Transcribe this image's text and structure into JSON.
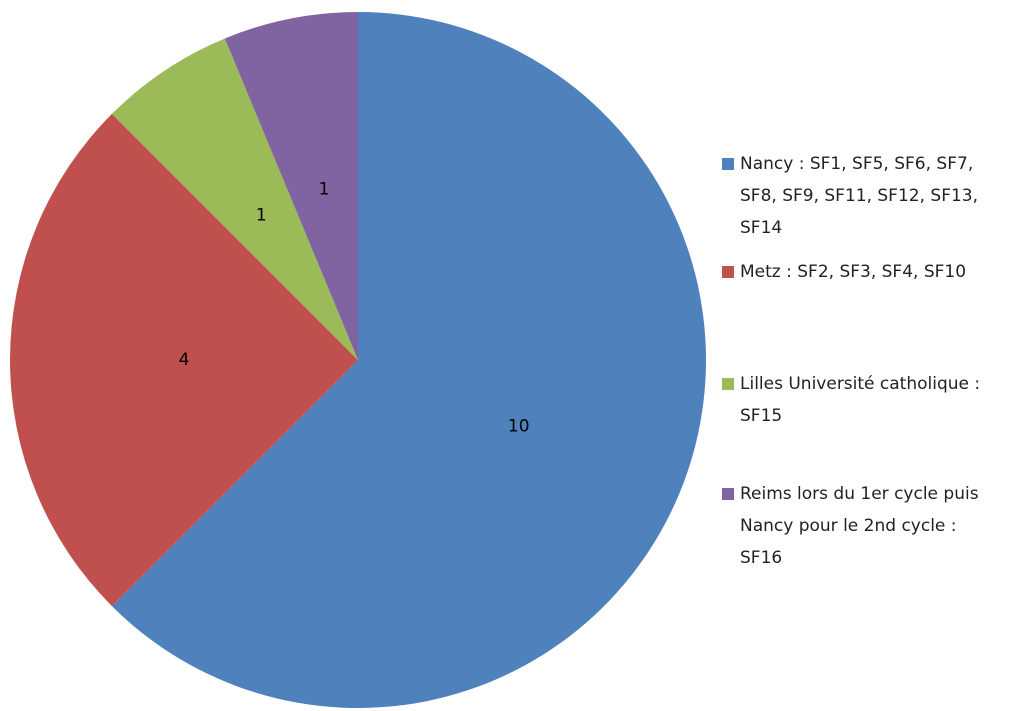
{
  "chart_data": {
    "type": "pie",
    "categories": [
      "Nancy : SF1, SF5, SF6, SF7, SF8, SF9, SF11, SF12, SF13, SF14",
      "Metz : SF2, SF3, SF4, SF10",
      "Lilles Université catholique : SF15",
      "Reims lors du 1er cycle puis Nancy pour le 2nd cycle : SF16"
    ],
    "values": [
      10,
      4,
      1,
      1
    ],
    "colors": [
      "#4f81bd",
      "#c0504d",
      "#9bbb59",
      "#8064a2"
    ],
    "legend": "right"
  }
}
